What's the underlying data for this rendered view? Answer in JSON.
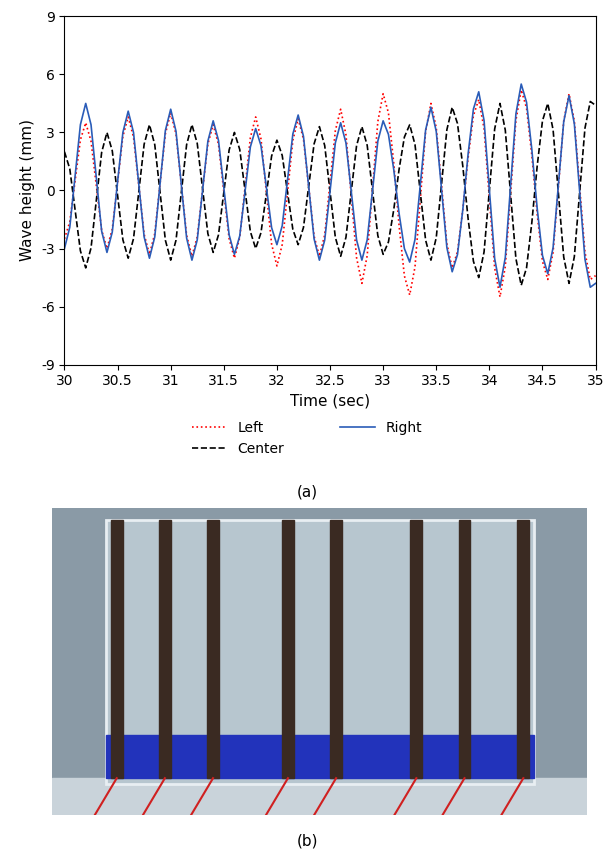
{
  "chart_data": {
    "type": "line",
    "x_label": "Time (sec)",
    "y_label": "Wave height (mm)",
    "x": [
      30.0,
      30.05,
      30.1,
      30.15,
      30.2,
      30.25,
      30.3,
      30.35,
      30.4,
      30.45,
      30.5,
      30.55,
      30.6,
      30.65,
      30.7,
      30.75,
      30.8,
      30.85,
      30.9,
      30.95,
      31.0,
      31.05,
      31.1,
      31.15,
      31.2,
      31.25,
      31.3,
      31.35,
      31.4,
      31.45,
      31.5,
      31.55,
      31.6,
      31.65,
      31.7,
      31.75,
      31.8,
      31.85,
      31.9,
      31.95,
      32.0,
      32.05,
      32.1,
      32.15,
      32.2,
      32.25,
      32.3,
      32.35,
      32.4,
      32.45,
      32.5,
      32.55,
      32.6,
      32.65,
      32.7,
      32.75,
      32.8,
      32.85,
      32.9,
      32.95,
      33.0,
      33.05,
      33.1,
      33.15,
      33.2,
      33.25,
      33.3,
      33.35,
      33.4,
      33.45,
      33.5,
      33.55,
      33.6,
      33.65,
      33.7,
      33.75,
      33.8,
      33.85,
      33.9,
      33.95,
      34.0,
      34.05,
      34.1,
      34.15,
      34.2,
      34.25,
      34.3,
      34.35,
      34.4,
      34.45,
      34.5,
      34.55,
      34.6,
      34.65,
      34.7,
      34.75,
      34.8,
      34.85,
      34.9,
      34.95,
      35.0
    ],
    "series": [
      {
        "name": "Left",
        "color": "#ff0000",
        "line_style": "dotted",
        "values": [
          -2.5,
          -1.62,
          0.5,
          2.62,
          3.5,
          2.55,
          0.25,
          -2.05,
          -3.0,
          -2.0,
          0.4,
          2.8,
          3.8,
          2.76,
          0.25,
          -2.26,
          -3.3,
          -2.23,
          0.35,
          2.93,
          4.0,
          2.92,
          0.3,
          -2.32,
          -3.4,
          -2.4,
          0,
          2.4,
          3.4,
          2.39,
          -0.05,
          -2.49,
          -3.5,
          -2.43,
          0.15,
          2.73,
          3.8,
          2.67,
          -0.05,
          -2.77,
          -3.9,
          -2.79,
          -0.1,
          2.59,
          3.7,
          2.66,
          0.15,
          -2.36,
          -3.4,
          -2.29,
          0.4,
          3.09,
          4.2,
          2.88,
          -0.3,
          -3.48,
          -4.8,
          -3.36,
          0.1,
          3.56,
          5.0,
          4.01,
          1.41,
          -1.81,
          -4.41,
          -5.4,
          -3.95,
          -0.45,
          3.05,
          4.5,
          3.25,
          0.25,
          -2.75,
          -4.0,
          -3.17,
          -1.0,
          1.69,
          3.87,
          4.7,
          3.21,
          -0.4,
          -4.01,
          -5.5,
          -3.93,
          -0.15,
          3.63,
          5.2,
          4.26,
          1.81,
          -1.21,
          -3.66,
          -4.6,
          -3.19,
          0.2,
          3.59,
          5.0,
          3.59,
          0.2,
          -3.19,
          -4.6,
          -4.4
        ]
      },
      {
        "name": "Center",
        "color": "#000000",
        "line_style": "dashed",
        "values": [
          2.0,
          1.12,
          -1.0,
          -3.12,
          -4.0,
          -2.97,
          -0.5,
          1.97,
          3.0,
          2.05,
          -0.25,
          -2.55,
          -3.5,
          -2.49,
          -0.05,
          2.39,
          3.4,
          2.37,
          -0.1,
          -2.57,
          -3.6,
          -2.57,
          -0.1,
          2.37,
          3.4,
          2.43,
          0.1,
          -2.23,
          -3.2,
          -2.29,
          -0.1,
          2.09,
          3.0,
          2.12,
          0,
          -2.12,
          -3.0,
          -2.18,
          -0.2,
          1.78,
          2.6,
          1.81,
          -0.1,
          -2.01,
          -2.8,
          -1.91,
          0.25,
          2.41,
          3.3,
          2.32,
          -0.05,
          -2.42,
          -3.4,
          -2.42,
          -0.05,
          2.32,
          3.3,
          2.33,
          0,
          -2.33,
          -3.3,
          -2.66,
          -0.99,
          1.09,
          2.76,
          3.4,
          2.37,
          -0.1,
          -2.57,
          -3.6,
          -2.44,
          0.35,
          3.14,
          4.3,
          3.46,
          1.26,
          -1.46,
          -3.66,
          -4.5,
          -3.18,
          0,
          3.18,
          4.5,
          3.12,
          -0.2,
          -3.52,
          -4.9,
          -4.0,
          -1.65,
          1.25,
          3.6,
          4.5,
          3.14,
          -0.15,
          -3.44,
          -4.8,
          -3.42,
          -0.1,
          3.22,
          4.6,
          4.4
        ]
      },
      {
        "name": "Right",
        "color": "#2a5cb8",
        "line_style": "solid",
        "values": [
          -3.0,
          -1.9,
          0.75,
          3.4,
          4.5,
          3.4,
          0.65,
          -2.1,
          -3.2,
          -2.15,
          0.45,
          3.0,
          4.1,
          3.0,
          0.3,
          -2.4,
          -3.5,
          -2.4,
          0.35,
          3.1,
          4.2,
          3.06,
          0.3,
          -2.46,
          -3.6,
          -2.55,
          0,
          2.55,
          3.6,
          2.59,
          0.15,
          -2.29,
          -3.3,
          -2.35,
          -0.05,
          2.25,
          3.2,
          2.32,
          0.2,
          -1.92,
          -2.8,
          -1.82,
          0.55,
          2.92,
          3.9,
          2.8,
          0.15,
          -2.5,
          -3.6,
          -2.56,
          -0.05,
          2.46,
          3.5,
          2.46,
          -0.05,
          -2.56,
          -3.6,
          -2.55,
          0,
          2.55,
          3.6,
          2.9,
          1.08,
          -1.18,
          -3.0,
          -3.7,
          -2.53,
          0.3,
          3.13,
          4.3,
          3.05,
          0.05,
          -2.95,
          -4.2,
          -3.31,
          -0.99,
          1.89,
          4.21,
          5.1,
          3.62,
          0.05,
          -3.52,
          -5.0,
          -3.46,
          0.25,
          3.96,
          5.5,
          4.56,
          2.11,
          -0.91,
          -3.36,
          -4.3,
          -2.95,
          0.3,
          3.55,
          4.9,
          3.45,
          -0.05,
          -3.55,
          -5.0,
          -4.8
        ]
      }
    ],
    "xlim": [
      30,
      35
    ],
    "xticks": [
      30,
      30.5,
      31,
      31.5,
      32,
      32.5,
      33,
      33.5,
      34,
      34.5,
      35
    ],
    "ylim": [
      -9,
      9
    ],
    "yticks": [
      -9,
      -6,
      -3,
      0,
      3,
      6,
      9
    ],
    "legend": "lower center",
    "grid": false
  },
  "panel_labels": [
    "(a)",
    "(b)"
  ]
}
